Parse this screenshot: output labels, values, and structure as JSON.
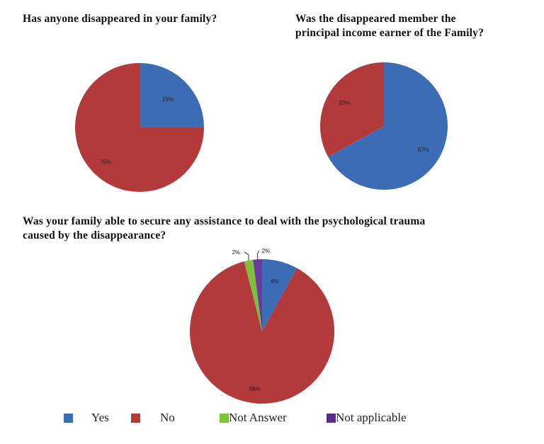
{
  "chart_data": [
    {
      "type": "pie",
      "title": "Has anyone disappeared in your family?",
      "slices": [
        {
          "name": "Yes",
          "value": 25,
          "label": "25%",
          "color": "#3c6db4"
        },
        {
          "name": "No",
          "value": 75,
          "label": "75%",
          "color": "#b33a3a"
        }
      ]
    },
    {
      "type": "pie",
      "title": "Was the disappeared member the principal income earner of the Family?",
      "title_lines": [
        "Was the disappeared member the",
        "principal income earner of the Family?"
      ],
      "slices": [
        {
          "name": "Yes",
          "value": 67,
          "label": "67%",
          "color": "#3c6db4"
        },
        {
          "name": "No",
          "value": 33,
          "label": "33%",
          "color": "#b33a3a"
        }
      ]
    },
    {
      "type": "pie",
      "title": "Was your family able to secure any assistance to deal with the psychological trauma caused by the disappearance?",
      "title_lines": [
        "Was your family able to secure any assistance to deal with the psychological trauma",
        "caused by the disappearance?"
      ],
      "slices": [
        {
          "name": "Yes",
          "value": 8,
          "label": "8%",
          "color": "#3c6db4"
        },
        {
          "name": "No",
          "value": 88,
          "label": "88%",
          "color": "#b33a3a"
        },
        {
          "name": "Not Answer",
          "value": 2,
          "label": "2%",
          "color": "#7fbf3f"
        },
        {
          "name": "Not applicable",
          "value": 2,
          "label": "2%",
          "color": "#6a3a9e"
        }
      ]
    }
  ],
  "legend": [
    {
      "label": "Yes",
      "color": "#3c6db4"
    },
    {
      "label": "No",
      "color": "#b33a3a"
    },
    {
      "label": "Not Answer",
      "color": "#7fbf3f"
    },
    {
      "label": "Not applicable",
      "color": "#6a3a9e"
    }
  ]
}
